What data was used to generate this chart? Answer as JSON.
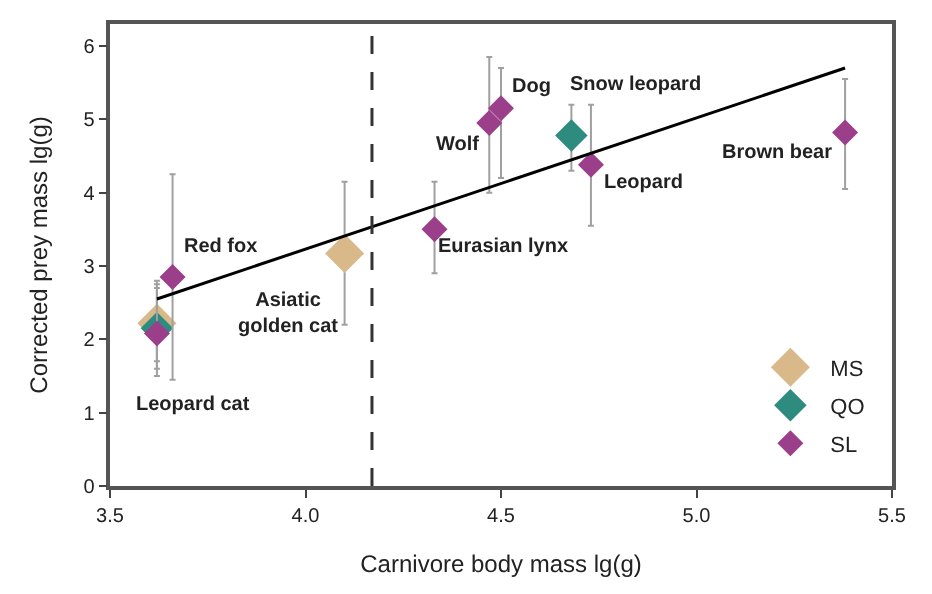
{
  "chart_data": {
    "type": "scatter",
    "xlabel": "Carnivore body mass lg(g)",
    "ylabel": "Corrected prey mass lg(g)",
    "xlim": [
      3.5,
      5.5
    ],
    "xticks": [
      3.5,
      {
        "value": 4,
        "label": "4.0"
      },
      4.5,
      {
        "value": 5,
        "label": "5.0"
      },
      5.5
    ],
    "ylim": [
      0,
      6.3
    ],
    "yticks": [
      0,
      1,
      2,
      3,
      4,
      5,
      6
    ],
    "legend": "bottom right",
    "marker": "diamond",
    "series": [
      {
        "name": "MS",
        "color": "#d9b98a",
        "x": [
          3.62,
          4.1
        ],
        "values": [
          2.22,
          3.17
        ],
        "errors": [
          [
            1.7,
            2.8
          ],
          [
            2.2,
            4.15
          ]
        ]
      },
      {
        "name": "QO",
        "color": "#2e8b7f",
        "x": [
          3.62,
          4.68
        ],
        "values": [
          2.15,
          4.78
        ],
        "errors": [
          [
            1.6,
            2.75
          ],
          [
            4.3,
            5.2
          ]
        ]
      },
      {
        "name": "SL",
        "color": "#9b3f8b",
        "x": [
          3.62,
          3.66,
          4.33,
          4.47,
          4.5,
          4.73,
          5.38
        ],
        "values": [
          2.08,
          2.85,
          3.5,
          4.95,
          5.15,
          4.38,
          4.82
        ],
        "errors": [
          [
            1.5,
            2.7
          ],
          [
            1.45,
            4.25
          ],
          [
            2.9,
            4.15
          ],
          [
            4.0,
            5.85
          ],
          [
            4.2,
            5.7
          ],
          [
            3.55,
            5.2
          ],
          [
            4.05,
            5.55
          ]
        ]
      },
      {
        "type": "line",
        "color": "#000000",
        "x": [
          3.62,
          5.38
        ],
        "values": [
          2.55,
          5.7
        ],
        "marker": "none"
      }
    ],
    "ref_lines": [
      {
        "axis": "x",
        "value": 4.17,
        "color": "#333333",
        "line_style": "dashed"
      }
    ],
    "annotations": [
      {
        "text": "Leopard cat",
        "x": 3.62,
        "y": 1.5
      },
      {
        "text": "Red fox",
        "x": 3.66,
        "y": 2.85
      },
      {
        "text": "Asiatic\ngolden cat",
        "x": 4.1,
        "y": 3.17
      },
      {
        "text": "Eurasian lynx",
        "x": 4.33,
        "y": 3.5
      },
      {
        "text": "Wolf",
        "x": 4.47,
        "y": 4.95
      },
      {
        "text": "Dog",
        "x": 4.5,
        "y": 5.15
      },
      {
        "text": "Snow leopard",
        "x": 4.68,
        "y": 4.78
      },
      {
        "text": "Leopard",
        "x": 4.73,
        "y": 4.38
      },
      {
        "text": "Brown bear",
        "x": 5.38,
        "y": 4.82
      }
    ]
  }
}
